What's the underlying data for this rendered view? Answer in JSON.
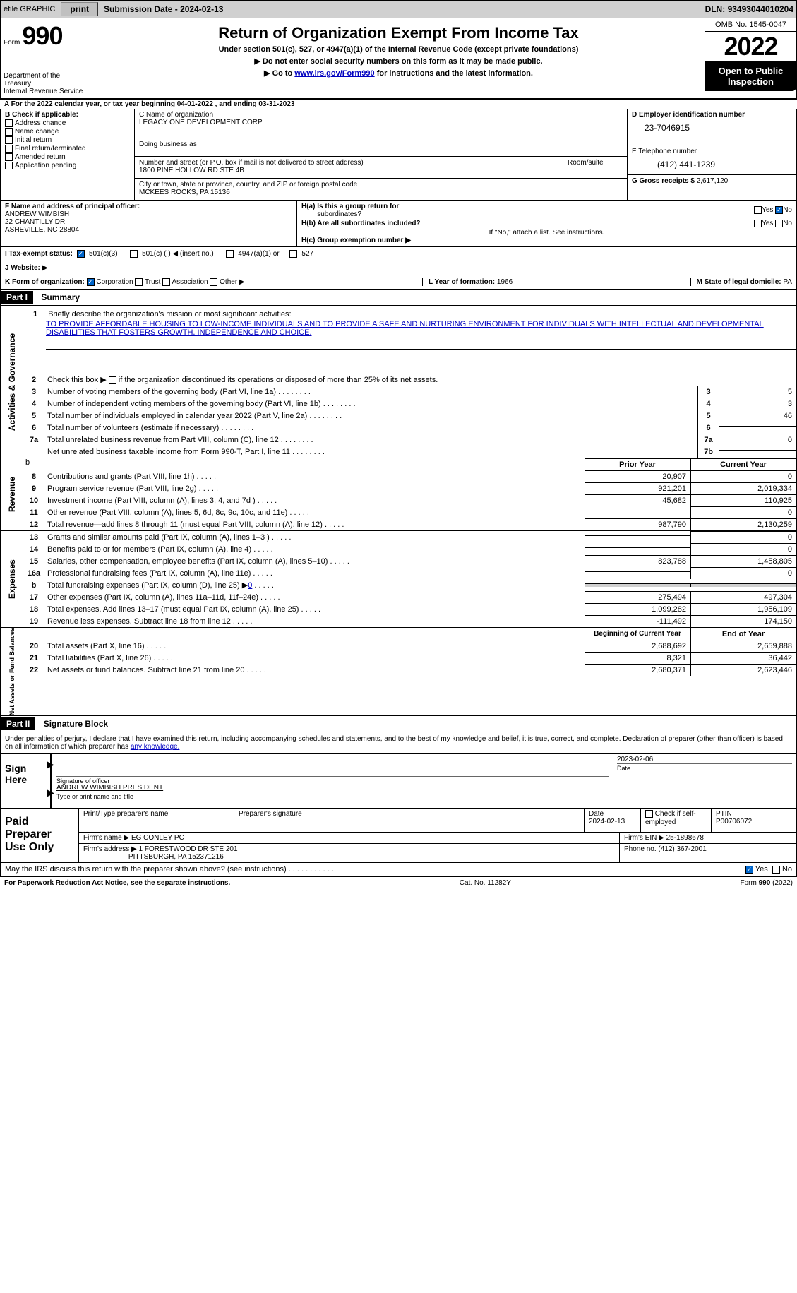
{
  "efile": {
    "label": "efile GRAPHIC",
    "print_btn": "print",
    "sub_date_label": "Submission Date - ",
    "sub_date": "2024-02-13",
    "dln_label": "DLN: ",
    "dln": "93493044010204"
  },
  "header": {
    "form_label": "Form",
    "form_num": "990",
    "dept": "Department of the Treasury",
    "irs": "Internal Revenue Service",
    "title": "Return of Organization Exempt From Income Tax",
    "subtitle": "Under section 501(c), 527, or 4947(a)(1) of the Internal Revenue Code (except private foundations)",
    "line1": "▶ Do not enter social security numbers on this form as it may be made public.",
    "line2_pre": "▶ Go to ",
    "line2_link": "www.irs.gov/Form990",
    "line2_post": " for instructions and the latest information.",
    "omb": "OMB No. 1545-0047",
    "year": "2022",
    "open_pub": "Open to Public Inspection"
  },
  "secA": {
    "a_line_pre": "A For the 2022 calendar year, or tax year beginning ",
    "a_begin": "04-01-2022",
    "a_mid": "  , and ending ",
    "a_end": "03-31-2023",
    "b_label": "B Check if applicable:",
    "b_items": [
      "Address change",
      "Name change",
      "Initial return",
      "Final return/terminated",
      "Amended return",
      "Application pending"
    ],
    "c_label": "C Name of organization",
    "c_name": "LEGACY ONE DEVELOPMENT CORP",
    "dba_label": "Doing business as",
    "addr_label": "Number and street (or P.O. box if mail is not delivered to street address)",
    "addr": "1800 PINE HOLLOW RD STE 4B",
    "room_label": "Room/suite",
    "city_label": "City or town, state or province, country, and ZIP or foreign postal code",
    "city": "MCKEES ROCKS, PA  15136",
    "d_label": "D Employer identification number",
    "d_val": "23-7046915",
    "e_label": "E Telephone number",
    "e_val": "(412) 441-1239",
    "g_label": "G Gross receipts $ ",
    "g_val": "2,617,120",
    "f_label": "F  Name and address of principal officer:",
    "f_name": "ANDREW WIMBISH",
    "f_addr1": "22 CHANTILLY DR",
    "f_addr2": "ASHEVILLE, NC  28804",
    "ha_label": "H(a)  Is this a group return for",
    "ha_sub": "subordinates?",
    "hb_label": "H(b)  Are all subordinates included?",
    "hb_note": "If \"No,\" attach a list. See instructions.",
    "hc_label": "H(c)  Group exemption number ▶",
    "yes": "Yes",
    "no": "No"
  },
  "secI": {
    "label": "I  Tax-exempt status:",
    "o1": "501(c)(3)",
    "o2": "501(c) (  ) ◀ (insert no.)",
    "o3": "4947(a)(1) or",
    "o4": "527"
  },
  "secJ": {
    "label": "J  Website: ▶"
  },
  "secK": {
    "label": "K Form of organization:",
    "o1": "Corporation",
    "o2": "Trust",
    "o3": "Association",
    "o4": "Other ▶",
    "l_label": "L Year of formation: ",
    "l_val": "1966",
    "m_label": "M State of legal domicile: ",
    "m_val": "PA"
  },
  "part1": {
    "hdr": "Part I",
    "title": "Summary",
    "line1_label": "Briefly describe the organization's mission or most significant activities:",
    "mission": "TO PROVIDE AFFORDABLE HOUSING TO LOW-INCOME INDIVIDUALS AND TO PROVIDE A SAFE AND NURTURING ENVIRONMENT FOR INDIVIDUALS WITH INTELLECTUAL AND DEVELOPMENTAL DISABILITIES THAT FOSTERS GROWTH, INDEPENDENCE AND CHOICE.",
    "line2": "Check this box ▶  if the organization discontinued its operations or disposed of more than 25% of its net assets.",
    "vert_act": "Activities & Governance",
    "lines_act": [
      {
        "n": "3",
        "t": "Number of voting members of the governing body (Part VI, line 1a)",
        "bn": "3",
        "v": "5"
      },
      {
        "n": "4",
        "t": "Number of independent voting members of the governing body (Part VI, line 1b)",
        "bn": "4",
        "v": "3"
      },
      {
        "n": "5",
        "t": "Total number of individuals employed in calendar year 2022 (Part V, line 2a)",
        "bn": "5",
        "v": "46"
      },
      {
        "n": "6",
        "t": "Total number of volunteers (estimate if necessary)",
        "bn": "6",
        "v": ""
      },
      {
        "n": "7a",
        "t": "Total unrelated business revenue from Part VIII, column (C), line 12",
        "bn": "7a",
        "v": "0"
      },
      {
        "n": "",
        "t": "Net unrelated business taxable income from Form 990-T, Part I, line 11",
        "bn": "7b",
        "v": ""
      }
    ],
    "vert_rev": "Revenue",
    "hdr_prior": "Prior Year",
    "hdr_curr": "Current Year",
    "rev_lines": [
      {
        "n": "8",
        "t": "Contributions and grants (Part VIII, line 1h)",
        "p": "20,907",
        "c": "0"
      },
      {
        "n": "9",
        "t": "Program service revenue (Part VIII, line 2g)",
        "p": "921,201",
        "c": "2,019,334"
      },
      {
        "n": "10",
        "t": "Investment income (Part VIII, column (A), lines 3, 4, and 7d )",
        "p": "45,682",
        "c": "110,925"
      },
      {
        "n": "11",
        "t": "Other revenue (Part VIII, column (A), lines 5, 6d, 8c, 9c, 10c, and 11e)",
        "p": "",
        "c": "0"
      },
      {
        "n": "12",
        "t": "Total revenue—add lines 8 through 11 (must equal Part VIII, column (A), line 12)",
        "p": "987,790",
        "c": "2,130,259"
      }
    ],
    "vert_exp": "Expenses",
    "exp_lines": [
      {
        "n": "13",
        "t": "Grants and similar amounts paid (Part IX, column (A), lines 1–3 )",
        "p": "",
        "c": "0"
      },
      {
        "n": "14",
        "t": "Benefits paid to or for members (Part IX, column (A), line 4)",
        "p": "",
        "c": "0"
      },
      {
        "n": "15",
        "t": "Salaries, other compensation, employee benefits (Part IX, column (A), lines 5–10)",
        "p": "823,788",
        "c": "1,458,805"
      },
      {
        "n": "16a",
        "t": "Professional fundraising fees (Part IX, column (A), line 11e)",
        "p": "",
        "c": "0"
      },
      {
        "n": "b",
        "t": "Total fundraising expenses (Part IX, column (D), line 25) ▶",
        "p": "gray",
        "c": "gray",
        "fund": "0"
      },
      {
        "n": "17",
        "t": "Other expenses (Part IX, column (A), lines 11a–11d, 11f–24e)",
        "p": "275,494",
        "c": "497,304"
      },
      {
        "n": "18",
        "t": "Total expenses. Add lines 13–17 (must equal Part IX, column (A), line 25)",
        "p": "1,099,282",
        "c": "1,956,109"
      },
      {
        "n": "19",
        "t": "Revenue less expenses. Subtract line 18 from line 12",
        "p": "-111,492",
        "c": "174,150"
      }
    ],
    "vert_na": "Net Assets or Fund Balances",
    "hdr_beg": "Beginning of Current Year",
    "hdr_end": "End of Year",
    "na_lines": [
      {
        "n": "20",
        "t": "Total assets (Part X, line 16)",
        "p": "2,688,692",
        "c": "2,659,888"
      },
      {
        "n": "21",
        "t": "Total liabilities (Part X, line 26)",
        "p": "8,321",
        "c": "36,442"
      },
      {
        "n": "22",
        "t": "Net assets or fund balances. Subtract line 21 from line 20",
        "p": "2,680,371",
        "c": "2,623,446"
      }
    ]
  },
  "part2": {
    "hdr": "Part II",
    "title": "Signature Block",
    "text_pre": "Under penalties of perjury, I declare that I have examined this return, including accompanying schedules and statements, and to the best of my knowledge and belief, it is true, correct, and complete. Declaration of preparer (other than officer) is based on all information of which preparer has ",
    "text_u": "any knowledge.",
    "sign_here": "Sign Here",
    "sig_of_officer": "Signature of officer",
    "date_label": "Date",
    "date_val": "2023-02-06",
    "name_title": "ANDREW WIMBISH  PRESIDENT",
    "name_title_label": "Type or print name and title",
    "prep_label": "Paid Preparer Use Only",
    "pt_name_label": "Print/Type preparer's name",
    "pt_sig_label": "Preparer's signature",
    "pt_date_label": "Date",
    "pt_date": "2024-02-13",
    "pt_check_label": "Check  if self-employed",
    "ptin_label": "PTIN",
    "ptin": "P00706072",
    "firm_name_label": "Firm's name     ▶ ",
    "firm_name": "EG CONLEY PC",
    "firm_ein_label": "Firm's EIN ▶ ",
    "firm_ein": "25-1898678",
    "firm_addr_label": "Firm's address ▶ ",
    "firm_addr1": "1 FORESTWOOD DR STE 201",
    "firm_addr2": "PITTSBURGH, PA  152371216",
    "phone_label": "Phone no. ",
    "phone": "(412) 367-2001",
    "discuss": "May the IRS discuss this return with the preparer shown above? (see instructions)"
  },
  "footer": {
    "pra": "For Paperwork Reduction Act Notice, see the separate instructions.",
    "cat": "Cat. No. 11282Y",
    "form": "Form 990 (2022)"
  }
}
